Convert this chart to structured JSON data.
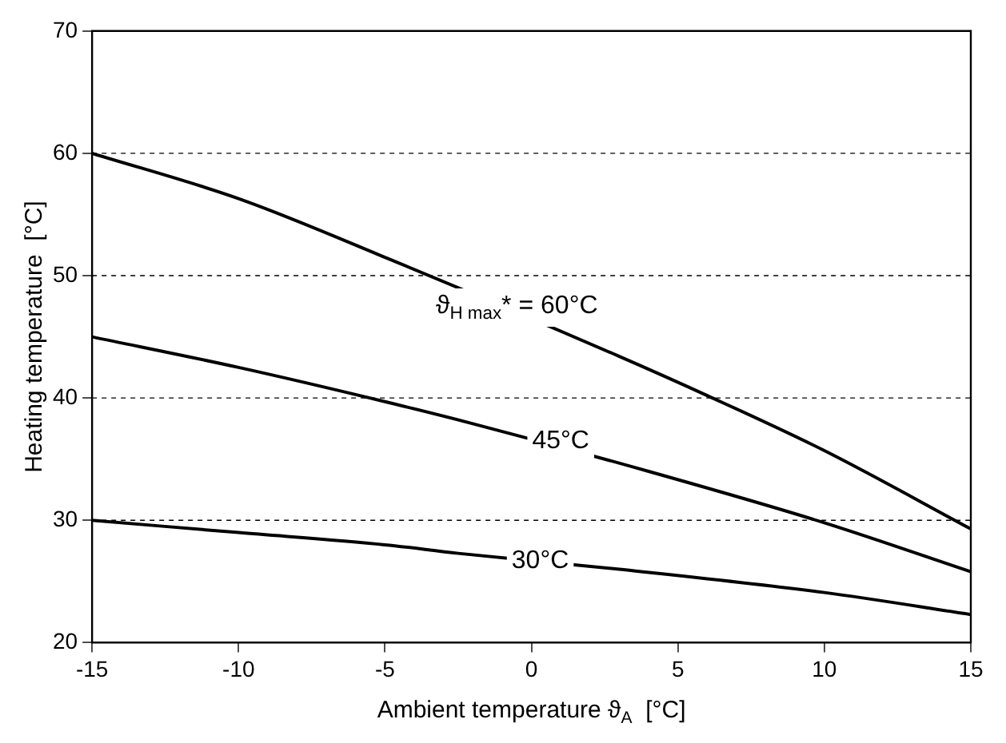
{
  "chart_data": {
    "type": "line",
    "xlabel": "Ambient temperature ϑ$_{A}$  [°C]",
    "ylabel": "Heating temperature  [°C]",
    "series": [
      {
        "color": "#000000",
        "x": [
          -15,
          -10,
          -5,
          3,
          6,
          10,
          15
        ],
        "values": [
          60,
          56.3,
          51.5,
          43.4,
          40.2,
          35.7,
          29.3
        ]
      },
      {
        "color": "#000000",
        "x": [
          -15,
          -10,
          -5,
          -2,
          4,
          10,
          15
        ],
        "values": [
          45,
          42.5,
          39.7,
          37.9,
          34,
          29.8,
          25.8
        ]
      },
      {
        "color": "#000000",
        "x": [
          -15,
          -10,
          -5,
          -2.5,
          3,
          10,
          15
        ],
        "values": [
          30,
          29,
          28,
          27.3,
          26,
          24.1,
          22.3
        ]
      }
    ],
    "annotations": [
      {
        "text": "ϑ$_{H max}$* = 60°C",
        "x": -0.5,
        "y": 47.5
      },
      {
        "text": "45°C",
        "x": 1,
        "y": 36.5
      },
      {
        "text": "30°C",
        "x": 0.3,
        "y": 26.7
      }
    ],
    "xlim": [
      -15,
      15
    ],
    "xticks": [
      -15,
      -10,
      -5,
      0,
      5,
      10,
      15
    ],
    "ylim": [
      20,
      70
    ],
    "yticks": [
      20,
      30,
      40,
      50,
      60,
      70
    ],
    "grid": "y",
    "line_style": "solid",
    "marker": "none",
    "legend": false
  }
}
